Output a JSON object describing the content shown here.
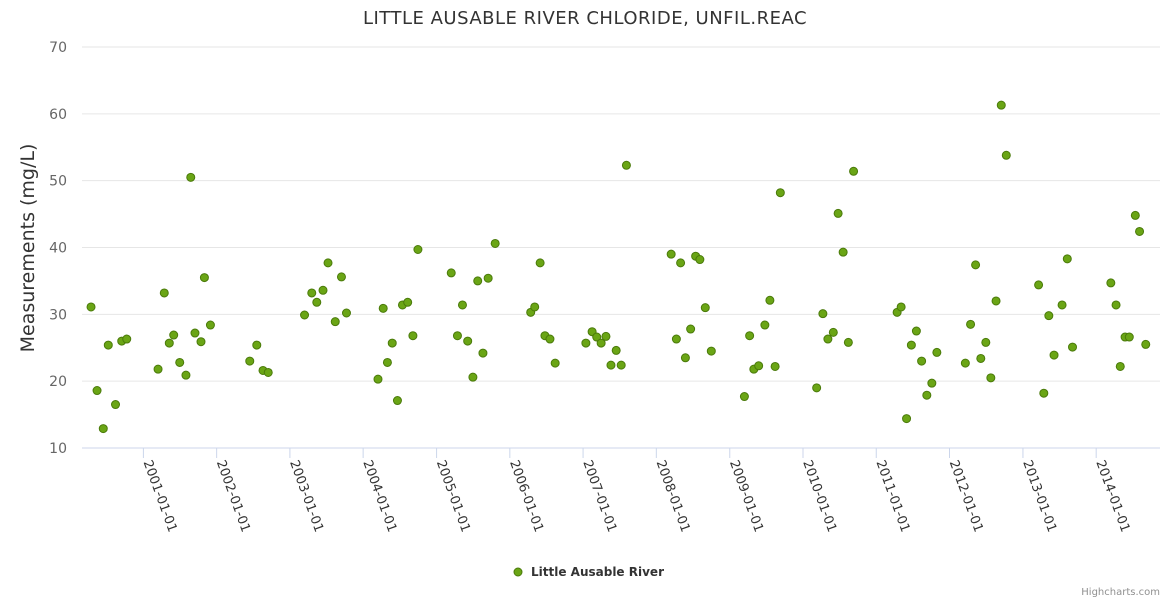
{
  "chart_data": {
    "type": "scatter",
    "title": "LITTLE AUSABLE RIVER CHLORIDE, UNFIL.REAC",
    "ylabel": "Measurements (mg/L)",
    "xlabel": "",
    "ylim": [
      10,
      70
    ],
    "yticks": [
      10,
      20,
      30,
      40,
      50,
      60,
      70
    ],
    "xlim": [
      "2000-03-01",
      "2014-11-15"
    ],
    "xticks": [
      "2001-01-01",
      "2002-01-01",
      "2003-01-01",
      "2004-01-01",
      "2005-01-01",
      "2006-01-01",
      "2007-01-01",
      "2008-01-01",
      "2009-01-01",
      "2010-01-01",
      "2011-01-01",
      "2012-01-01",
      "2013-01-01",
      "2014-01-01"
    ],
    "grid": true,
    "legend": "bottom-center",
    "series": [
      {
        "name": "Little Ausable River",
        "color": "#6aa515",
        "points": [
          [
            "2000-04-15",
            31.1
          ],
          [
            "2000-05-15",
            18.6
          ],
          [
            "2000-06-15",
            12.9
          ],
          [
            "2000-07-10",
            25.4
          ],
          [
            "2000-08-15",
            16.5
          ],
          [
            "2000-09-15",
            26.0
          ],
          [
            "2000-10-10",
            26.3
          ],
          [
            "2001-03-15",
            21.8
          ],
          [
            "2001-04-15",
            33.2
          ],
          [
            "2001-05-10",
            25.7
          ],
          [
            "2001-06-01",
            26.9
          ],
          [
            "2001-07-01",
            22.8
          ],
          [
            "2001-08-01",
            20.9
          ],
          [
            "2001-08-25",
            50.5
          ],
          [
            "2001-09-15",
            27.2
          ],
          [
            "2001-10-15",
            25.9
          ],
          [
            "2001-11-01",
            35.5
          ],
          [
            "2001-12-01",
            28.4
          ],
          [
            "2002-06-15",
            23.0
          ],
          [
            "2002-07-20",
            25.4
          ],
          [
            "2002-08-20",
            21.6
          ],
          [
            "2002-09-15",
            21.3
          ],
          [
            "2003-03-15",
            29.9
          ],
          [
            "2003-04-20",
            33.2
          ],
          [
            "2003-05-15",
            31.8
          ],
          [
            "2003-06-15",
            33.6
          ],
          [
            "2003-07-10",
            37.7
          ],
          [
            "2003-08-15",
            28.9
          ],
          [
            "2003-09-15",
            35.6
          ],
          [
            "2003-10-10",
            30.2
          ],
          [
            "2004-03-15",
            20.3
          ],
          [
            "2004-04-10",
            30.9
          ],
          [
            "2004-05-01",
            22.8
          ],
          [
            "2004-05-25",
            25.7
          ],
          [
            "2004-06-20",
            17.1
          ],
          [
            "2004-07-15",
            31.4
          ],
          [
            "2004-08-10",
            31.8
          ],
          [
            "2004-09-05",
            26.8
          ],
          [
            "2004-09-30",
            39.7
          ],
          [
            "2005-03-15",
            36.2
          ],
          [
            "2005-04-15",
            26.8
          ],
          [
            "2005-05-10",
            31.4
          ],
          [
            "2005-06-05",
            26.0
          ],
          [
            "2005-07-01",
            20.6
          ],
          [
            "2005-07-25",
            35.0
          ],
          [
            "2005-08-20",
            24.2
          ],
          [
            "2005-09-15",
            35.4
          ],
          [
            "2005-10-20",
            40.6
          ],
          [
            "2006-04-15",
            30.3
          ],
          [
            "2006-05-05",
            31.1
          ],
          [
            "2006-06-01",
            37.7
          ],
          [
            "2006-06-25",
            26.8
          ],
          [
            "2006-07-20",
            26.3
          ],
          [
            "2006-08-15",
            22.7
          ],
          [
            "2007-01-15",
            25.7
          ],
          [
            "2007-02-15",
            27.4
          ],
          [
            "2007-03-10",
            26.6
          ],
          [
            "2007-04-01",
            25.7
          ],
          [
            "2007-04-25",
            26.7
          ],
          [
            "2007-05-20",
            22.4
          ],
          [
            "2007-06-15",
            24.6
          ],
          [
            "2007-07-10",
            22.4
          ],
          [
            "2007-08-05",
            52.3
          ],
          [
            "2008-03-15",
            39.0
          ],
          [
            "2008-04-10",
            26.3
          ],
          [
            "2008-05-01",
            37.7
          ],
          [
            "2008-05-25",
            23.5
          ],
          [
            "2008-06-20",
            27.8
          ],
          [
            "2008-07-15",
            38.7
          ],
          [
            "2008-08-05",
            38.2
          ],
          [
            "2008-09-01",
            31.0
          ],
          [
            "2008-10-01",
            24.5
          ],
          [
            "2009-03-15",
            17.7
          ],
          [
            "2009-04-10",
            26.8
          ],
          [
            "2009-05-01",
            21.8
          ],
          [
            "2009-05-25",
            22.3
          ],
          [
            "2009-06-25",
            28.4
          ],
          [
            "2009-07-20",
            32.1
          ],
          [
            "2009-08-15",
            22.2
          ],
          [
            "2009-09-10",
            48.2
          ],
          [
            "2010-03-10",
            19.0
          ],
          [
            "2010-04-10",
            30.1
          ],
          [
            "2010-05-05",
            26.3
          ],
          [
            "2010-06-01",
            27.3
          ],
          [
            "2010-06-25",
            45.1
          ],
          [
            "2010-07-20",
            39.3
          ],
          [
            "2010-08-15",
            25.8
          ],
          [
            "2010-09-10",
            51.4
          ],
          [
            "2011-04-15",
            30.3
          ],
          [
            "2011-05-05",
            31.1
          ],
          [
            "2011-06-01",
            14.4
          ],
          [
            "2011-06-25",
            25.4
          ],
          [
            "2011-07-20",
            27.5
          ],
          [
            "2011-08-15",
            23.0
          ],
          [
            "2011-09-10",
            17.9
          ],
          [
            "2011-10-05",
            19.7
          ],
          [
            "2011-10-30",
            24.3
          ],
          [
            "2012-03-20",
            22.7
          ],
          [
            "2012-04-15",
            28.5
          ],
          [
            "2012-05-10",
            37.4
          ],
          [
            "2012-06-05",
            23.4
          ],
          [
            "2012-06-30",
            25.8
          ],
          [
            "2012-07-25",
            20.5
          ],
          [
            "2012-08-20",
            32.0
          ],
          [
            "2012-09-15",
            61.3
          ],
          [
            "2012-10-10",
            53.8
          ],
          [
            "2013-03-20",
            34.4
          ],
          [
            "2013-04-15",
            18.2
          ],
          [
            "2013-05-10",
            29.8
          ],
          [
            "2013-06-05",
            23.9
          ],
          [
            "2013-07-15",
            31.4
          ],
          [
            "2013-08-10",
            38.3
          ],
          [
            "2013-09-05",
            25.1
          ],
          [
            "2014-03-15",
            34.7
          ],
          [
            "2014-04-10",
            31.4
          ],
          [
            "2014-05-01",
            22.2
          ],
          [
            "2014-05-25",
            26.6
          ],
          [
            "2014-06-15",
            26.6
          ],
          [
            "2014-07-15",
            44.8
          ],
          [
            "2014-08-05",
            42.4
          ],
          [
            "2014-09-05",
            25.5
          ]
        ]
      }
    ]
  },
  "credit": "Highcharts.com"
}
